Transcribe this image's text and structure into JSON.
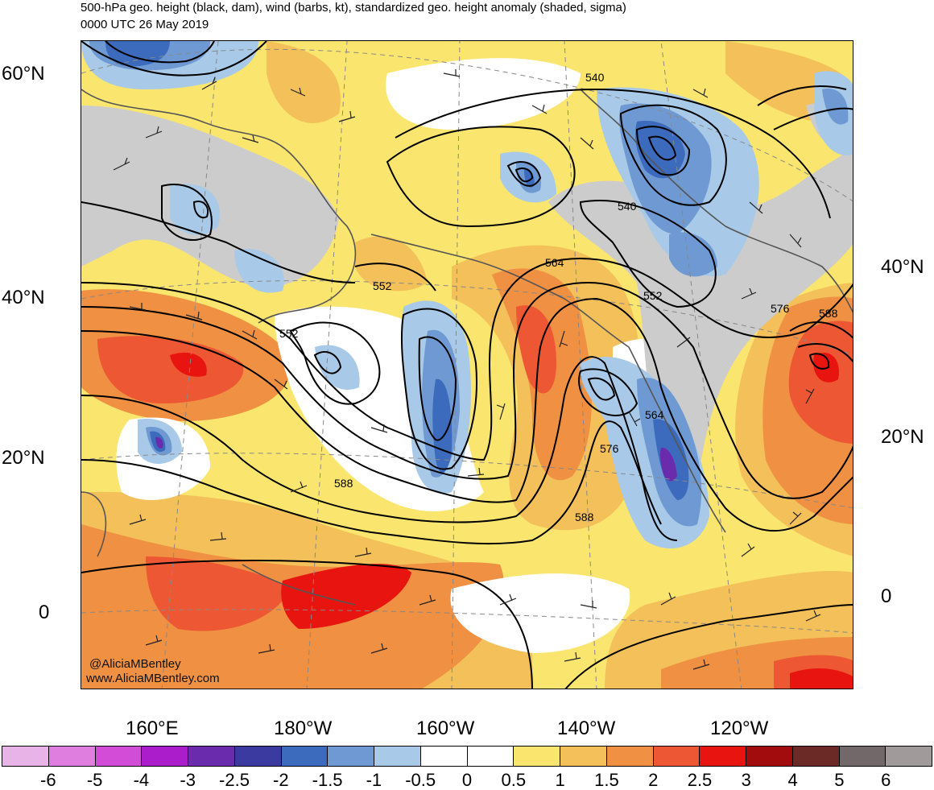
{
  "title": {
    "line1": "500-hPa geo. height (black, dam), wind (barbs, kt), standardized geo. height anomaly (shaded, sigma)",
    "line2": "0000 UTC 26 May 2019"
  },
  "map": {
    "lat_labels_left": [
      "60°N",
      "40°N",
      "20°N",
      "0"
    ],
    "lat_labels_right": [
      "40°N",
      "20°N",
      "0"
    ],
    "lon_labels": [
      "160°E",
      "180°W",
      "160°W",
      "140°W",
      "120°W"
    ],
    "contour_labels": [
      "540",
      "540",
      "552",
      "552",
      "552",
      "564",
      "564",
      "576",
      "576",
      "588",
      "588",
      "588"
    ],
    "credit_line1": "@AliciaMBentley",
    "credit_line2": "www.AliciaMBentley.com"
  },
  "colorbar": {
    "labels": [
      "-6",
      "-5",
      "-4",
      "-3",
      "-2.5",
      "-2",
      "-1.5",
      "-1",
      "-0.5",
      "0",
      "0.5",
      "1",
      "1.5",
      "2",
      "2.5",
      "3",
      "4",
      "5",
      "6"
    ],
    "colors": [
      "#e8b4e8",
      "#e07ee0",
      "#d24cd8",
      "#ab1dcb",
      "#6a2cad",
      "#3a3aa0",
      "#3c6bbd",
      "#6f99d2",
      "#a8c9e8",
      "#ffffff",
      "#ffffff",
      "#fae66e",
      "#f3c05a",
      "#ef9042",
      "#ee5733",
      "#e81410",
      "#a30c0c",
      "#6b2a26",
      "#72686a",
      "#a09a9a"
    ]
  }
}
